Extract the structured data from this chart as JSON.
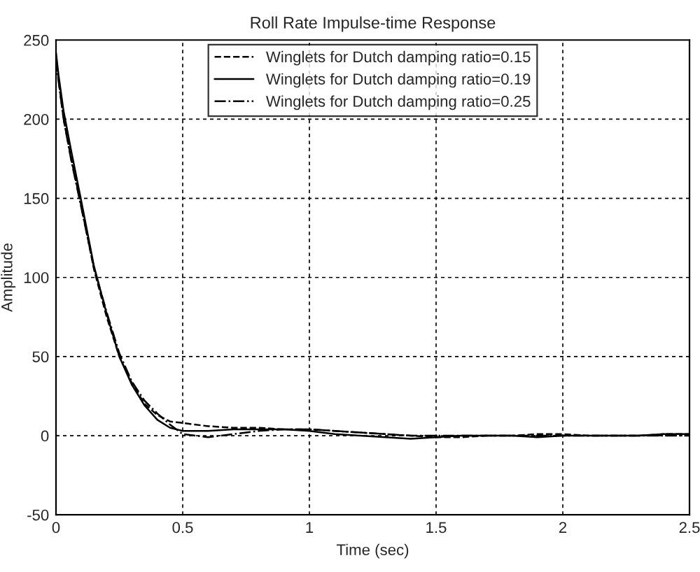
{
  "chart_data": {
    "type": "line",
    "title": "Roll Rate Impulse-time Response",
    "xlabel": "Time (sec)",
    "ylabel": "Amplitude",
    "xlim": [
      0,
      2.5
    ],
    "xticks": [
      0,
      0.5,
      1,
      1.5,
      2,
      2.5
    ],
    "ylim": [
      -50,
      250
    ],
    "yticks": [
      -50,
      0,
      50,
      100,
      150,
      200,
      250
    ],
    "grid": true,
    "legend": "top",
    "series": [
      {
        "name": "Winglets for Dutch damping ratio=0.15",
        "color": "#000000",
        "line_style": "dashed",
        "x": [
          0,
          0.01,
          0.03,
          0.06,
          0.1,
          0.15,
          0.2,
          0.25,
          0.3,
          0.35,
          0.4,
          0.45,
          0.5,
          0.6,
          0.7,
          0.8,
          0.9,
          1.0,
          1.1,
          1.2,
          1.3,
          1.4,
          1.5,
          1.6,
          1.7,
          1.8,
          1.9,
          2.0,
          2.1,
          2.2,
          2.3,
          2.4,
          2.5
        ],
        "values": [
          240,
          225,
          200,
          175,
          145,
          105,
          75,
          50,
          33,
          20,
          13,
          9,
          8,
          6,
          5,
          5,
          4,
          4,
          3,
          2,
          1,
          0,
          -1,
          -1,
          0,
          0,
          1,
          1,
          0,
          0,
          0,
          1,
          1
        ]
      },
      {
        "name": "Winglets for Dutch damping ratio=0.19",
        "color": "#000000",
        "line_style": "solid",
        "x": [
          0,
          0.01,
          0.03,
          0.06,
          0.1,
          0.15,
          0.2,
          0.25,
          0.3,
          0.35,
          0.4,
          0.45,
          0.5,
          0.6,
          0.7,
          0.8,
          0.9,
          1.0,
          1.1,
          1.2,
          1.3,
          1.4,
          1.5,
          1.6,
          1.7,
          1.8,
          1.9,
          2.0,
          2.1,
          2.2,
          2.3,
          2.4,
          2.5
        ],
        "values": [
          242,
          228,
          205,
          180,
          148,
          107,
          77,
          50,
          32,
          19,
          10,
          5,
          3,
          3,
          4,
          4,
          4,
          3,
          1,
          0,
          -1,
          -2,
          -1,
          0,
          0,
          0,
          -1,
          0,
          0,
          0,
          0,
          1,
          1
        ]
      },
      {
        "name": "Winglets for Dutch damping ratio=0.25",
        "color": "#000000",
        "line_style": "dashdot",
        "x": [
          0,
          0.01,
          0.03,
          0.06,
          0.1,
          0.15,
          0.2,
          0.25,
          0.3,
          0.35,
          0.4,
          0.45,
          0.5,
          0.6,
          0.7,
          0.8,
          0.9,
          1.0,
          1.1,
          1.2,
          1.3,
          1.4,
          1.5,
          1.6,
          1.7,
          1.8,
          1.9,
          2.0,
          2.1,
          2.2,
          2.3,
          2.4,
          2.5
        ],
        "values": [
          238,
          224,
          200,
          174,
          144,
          106,
          78,
          52,
          34,
          22,
          14,
          7,
          1,
          -1,
          1,
          3,
          4,
          4,
          3,
          2,
          1,
          0,
          0,
          0,
          0,
          0,
          0,
          0,
          0,
          0,
          0,
          0,
          0
        ]
      }
    ]
  }
}
